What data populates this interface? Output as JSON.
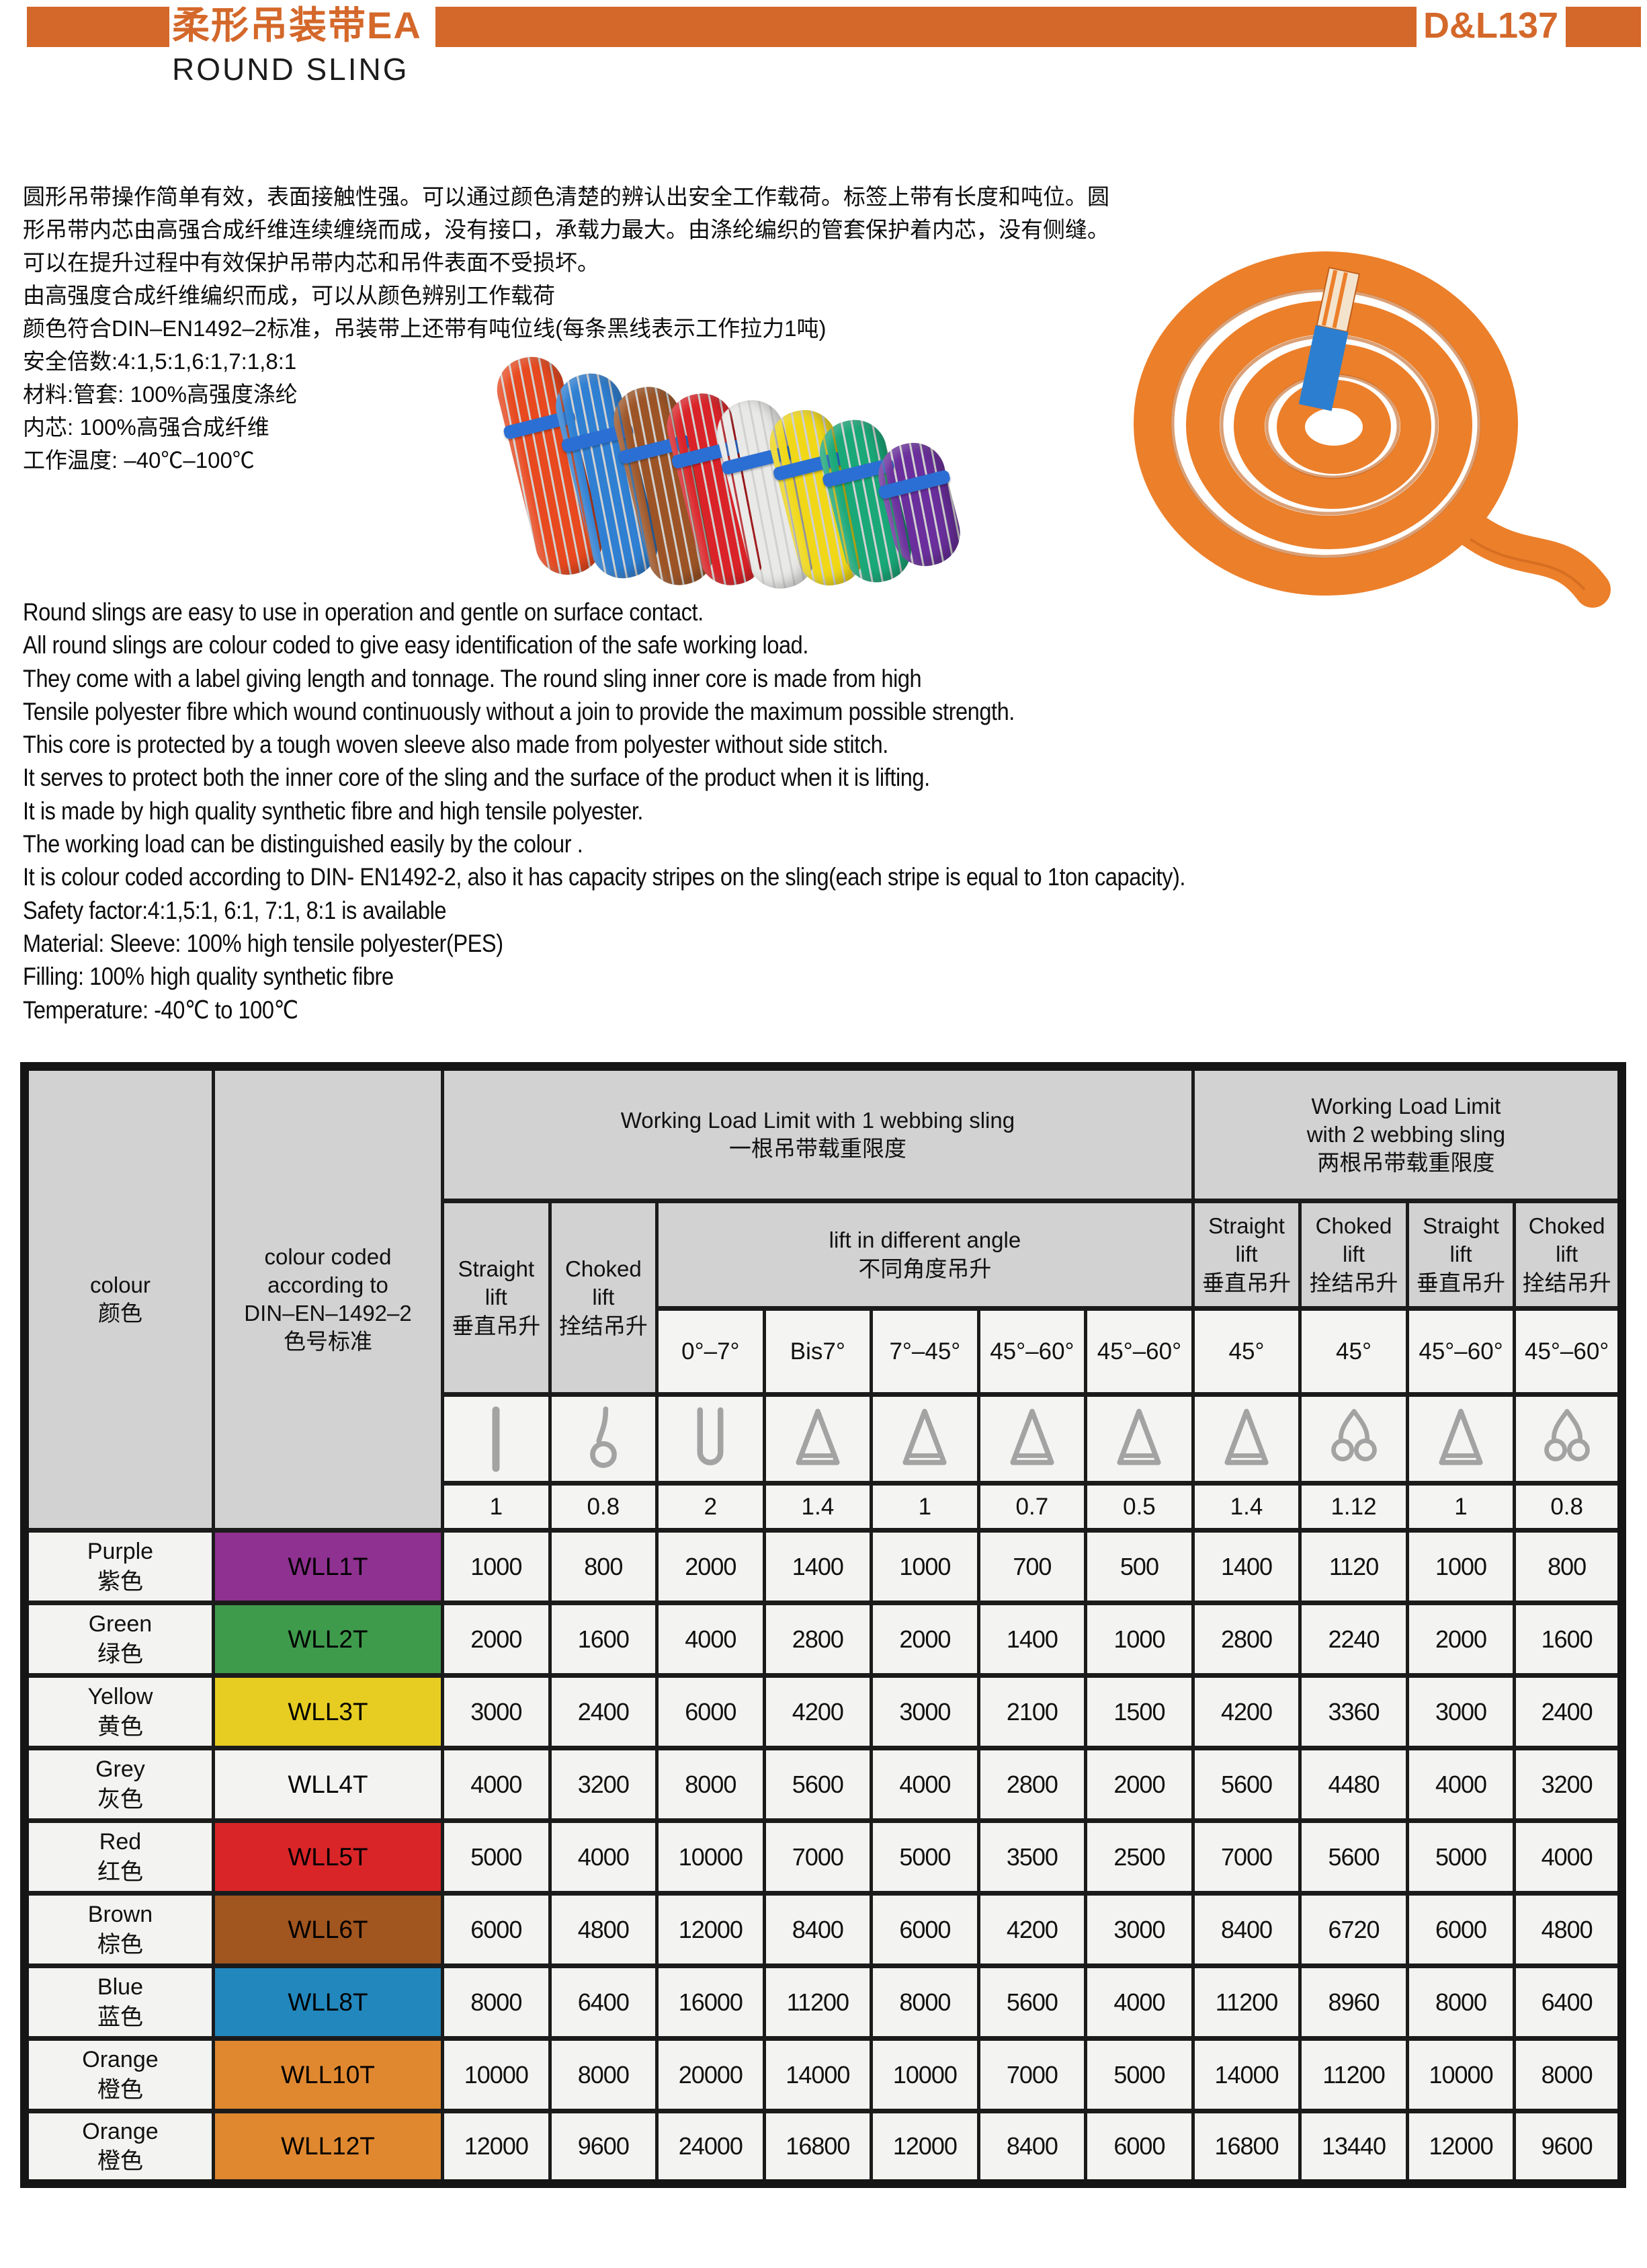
{
  "page": {
    "accent_color": "#d4682a",
    "title_zh": "柔形吊装带EA",
    "title_en": "ROUND SLING",
    "page_code": "D&L137"
  },
  "intro_zh": {
    "lines": [
      "圆形吊带操作简单有效，表面接触性强。可以通过颜色清楚的辨认出安全工作载荷。标签上带有长度和吨位。圆",
      "形吊带内芯由高强合成纤维连续缠绕而成，没有接口，承载力最大。由涤纶编织的管套保护着内芯，没有侧缝。",
      "可以在提升过程中有效保护吊带内芯和吊件表面不受损坏。",
      "由高强度合成纤维编织而成，可以从颜色辨别工作载荷",
      "颜色符合DIN–EN1492–2标准，吊装带上还带有吨位线(每条黑线表示工作拉力1吨)",
      "安全倍数:4:1,5:1,6:1,7:1,8:1",
      "材料:管套: 100%高强度涤纶",
      "内芯: 100%高强合成纤维",
      "工作温度: –40℃–100℃"
    ]
  },
  "intro_en": {
    "lines": [
      "Round slings are easy to use in operation and gentle on surface contact.",
      "All round slings are colour coded to give easy identification of the safe working load.",
      "They come with a label giving length and tonnage. The round sling inner core is made from high",
      "Tensile polyester fibre which wound continuously without a join to provide the maximum possible strength.",
      "This core is protected by a tough woven sleeve also made from polyester without side stitch.",
      "It serves to protect both the inner core of the sling and the surface of the product when it is lifting.",
      "It is made by high quality synthetic fibre and high tensile polyester.",
      "The working load can be distinguished easily by the colour .",
      "It is colour coded according to DIN- EN1492-2, also it has capacity stripes on the sling(each stripe is equal to 1ton capacity).",
      "Safety factor:4:1,5:1, 6:1, 7:1, 8:1 is available",
      "Material: Sleeve: 100% high tensile polyester(PES)",
      "Filling: 100% high quality synthetic fibre",
      "Temperature: -40℃ to 100℃"
    ]
  },
  "photos": {
    "bundle_colors": [
      "#e8491f",
      "#2f7fd2",
      "#9c5426",
      "#da2328",
      "#e9e9e7",
      "#f0d818",
      "#1aa878",
      "#6a2f9c"
    ],
    "coil_color": "#ec7f2a",
    "coil_shade": "#c2601a",
    "label_color": "#2c7fd0"
  },
  "table": {
    "col1_label": "colour\n颜色",
    "col2_label": "colour coded\naccording to\nDIN–EN–1492–2\n色号标准",
    "group1_label": "Working Load Limit with 1 webbing sling\n一根吊带载重限度",
    "group2_label": "Working Load Limit\nwith 2 webbing sling\n两根吊带载重限度",
    "straight_label": "Straight lift\n垂直吊升",
    "choked_label": "Choked lift\n拴结吊升",
    "angle_group_label": "lift in different angle\n不同角度吊升",
    "angles_one_sling": [
      "0°–7°",
      "Bis7°",
      "7°–45°",
      "45°–60°",
      "45°–60°"
    ],
    "angles_two_sling": [
      "45°",
      "45°",
      "45°–60°",
      "45°–60°"
    ],
    "load_factors": [
      "1",
      "0.8",
      "2",
      "1.4",
      "1",
      "0.7",
      "0.5",
      "1.4",
      "1.12",
      "1",
      "0.8"
    ],
    "icons": [
      "straight-sling-icon",
      "choked-sling-icon",
      "basket-sling-icon",
      "triangle-lift-icon",
      "triangle-lift-icon",
      "triangle-lift-icon",
      "triangle-lift-icon",
      "triangle-lift-icon",
      "double-choked-sling-icon",
      "triangle-lift-icon",
      "double-choked-sling-icon"
    ],
    "rows": [
      {
        "color_en": "Purple",
        "color_zh": "紫色",
        "wll": "WLL1T",
        "swatch": "#8e3190",
        "values": [
          "1000",
          "800",
          "2000",
          "1400",
          "1000",
          "700",
          "500",
          "1400",
          "1120",
          "1000",
          "800"
        ]
      },
      {
        "color_en": "Green",
        "color_zh": "绿色",
        "wll": "WLL2T",
        "swatch": "#3f9b4c",
        "values": [
          "2000",
          "1600",
          "4000",
          "2800",
          "2000",
          "1400",
          "1000",
          "2800",
          "2240",
          "2000",
          "1600"
        ]
      },
      {
        "color_en": "Yellow",
        "color_zh": "黄色",
        "wll": "WLL3T",
        "swatch": "#e7cd22",
        "values": [
          "3000",
          "2400",
          "6000",
          "4200",
          "3000",
          "2100",
          "1500",
          "4200",
          "3360",
          "3000",
          "2400"
        ]
      },
      {
        "color_en": "Grey",
        "color_zh": "灰色",
        "wll": "WLL4T",
        "swatch": "#f3f3f1",
        "values": [
          "4000",
          "3200",
          "8000",
          "5600",
          "4000",
          "2800",
          "2000",
          "5600",
          "4480",
          "4000",
          "3200"
        ]
      },
      {
        "color_en": "Red",
        "color_zh": "红色",
        "wll": "WLL5T",
        "swatch": "#d92528",
        "values": [
          "5000",
          "4000",
          "10000",
          "7000",
          "5000",
          "3500",
          "2500",
          "7000",
          "5600",
          "5000",
          "4000"
        ]
      },
      {
        "color_en": "Brown",
        "color_zh": "棕色",
        "wll": "WLL6T",
        "swatch": "#a1551f",
        "values": [
          "6000",
          "4800",
          "12000",
          "8400",
          "6000",
          "4200",
          "3000",
          "8400",
          "6720",
          "6000",
          "4800"
        ]
      },
      {
        "color_en": "Blue",
        "color_zh": "蓝色",
        "wll": "WLL8T",
        "swatch": "#2287bd",
        "values": [
          "8000",
          "6400",
          "16000",
          "11200",
          "8000",
          "5600",
          "4000",
          "11200",
          "8960",
          "8000",
          "6400"
        ]
      },
      {
        "color_en": "Orange",
        "color_zh": "橙色",
        "wll": "WLL10T",
        "swatch": "#e0882f",
        "values": [
          "10000",
          "8000",
          "20000",
          "14000",
          "10000",
          "7000",
          "5000",
          "14000",
          "11200",
          "10000",
          "8000"
        ]
      },
      {
        "color_en": "Orange",
        "color_zh": "橙色",
        "wll": "WLL12T",
        "swatch": "#e0882f",
        "values": [
          "12000",
          "9600",
          "24000",
          "16800",
          "12000",
          "8400",
          "6000",
          "16800",
          "13440",
          "12000",
          "9600"
        ]
      }
    ]
  }
}
